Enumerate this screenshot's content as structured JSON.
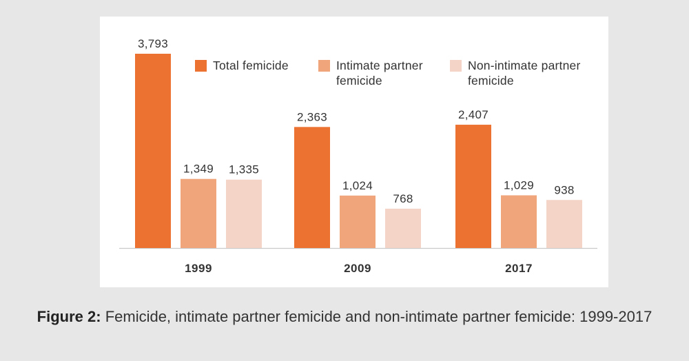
{
  "chart_data": {
    "type": "bar",
    "categories": [
      "1999",
      "2009",
      "2017"
    ],
    "series": [
      {
        "name": "Total femicide",
        "color": "#ec7231",
        "values": [
          3793,
          2363,
          2407
        ],
        "value_labels": [
          "3,793",
          "2,363",
          "2,407"
        ]
      },
      {
        "name": "Intimate partner femicide",
        "color": "#f0a57b",
        "values": [
          1349,
          1024,
          1029
        ],
        "value_labels": [
          "1,349",
          "1,024",
          "1,029"
        ]
      },
      {
        "name": "Non-intimate partner femicide",
        "color": "#f4d4c6",
        "values": [
          1335,
          768,
          938
        ],
        "value_labels": [
          "1,335",
          "768",
          "938"
        ]
      }
    ],
    "ylim": [
      0,
      4000
    ],
    "grid": false,
    "legend_position": "top-right"
  },
  "caption": {
    "label": "Figure 2:",
    "text": "Femicide, intimate partner femicide and non-intimate partner femicide: 1999-2017"
  }
}
